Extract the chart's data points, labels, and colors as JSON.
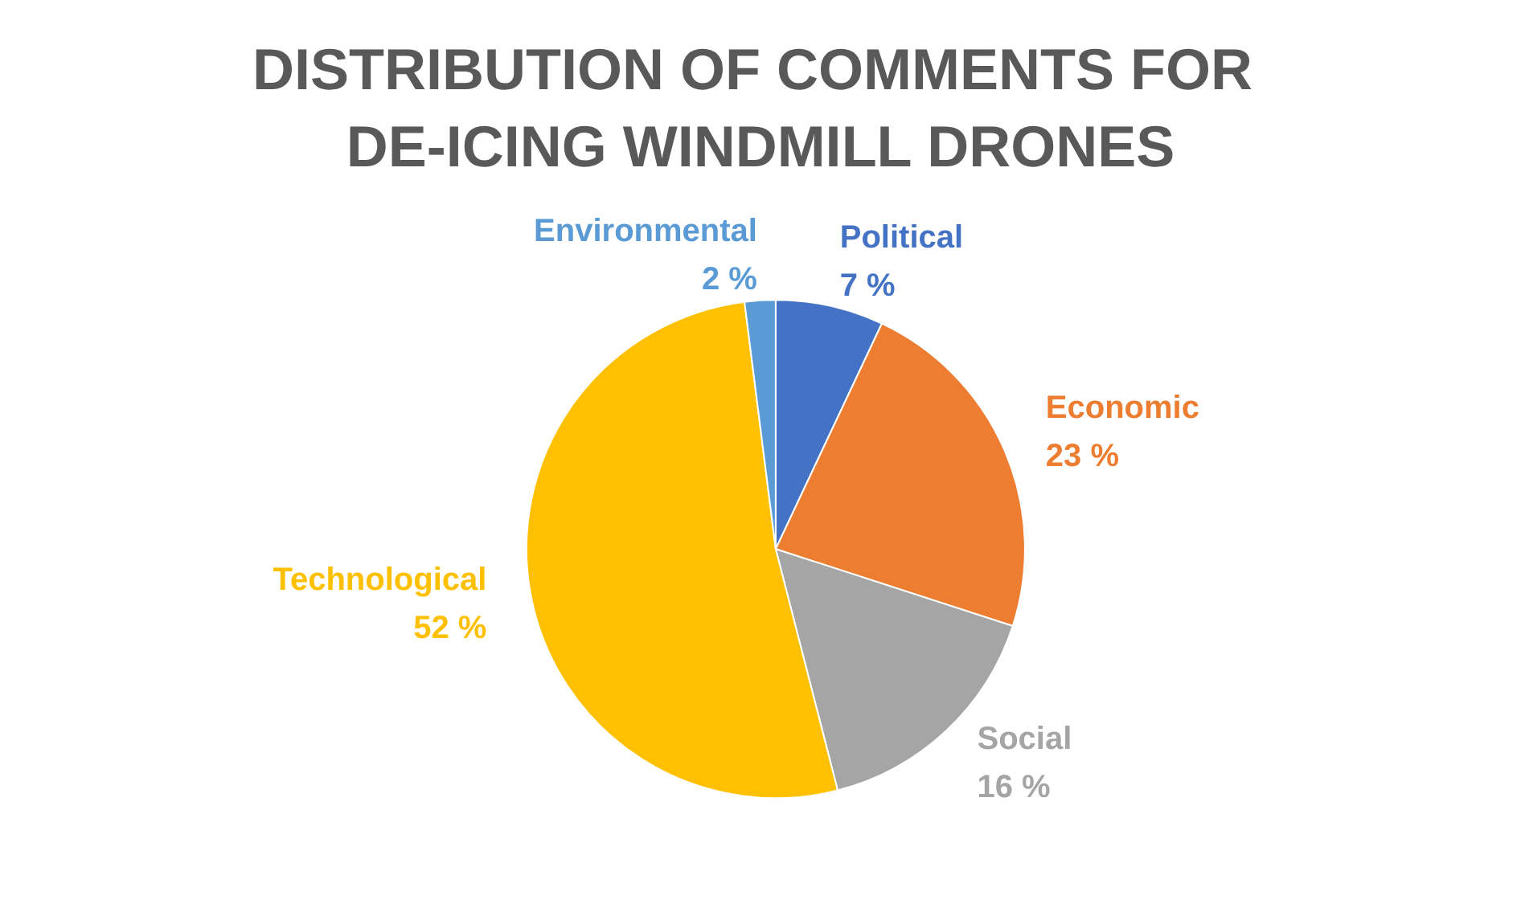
{
  "chart_data": {
    "type": "pie",
    "title": "DISTRIBUTION OF COMMENTS FOR DE-ICING WINDMILL DRONES",
    "categories": [
      "Political",
      "Economic",
      "Social",
      "Technological",
      "Environmental"
    ],
    "values": [
      7,
      23,
      16,
      52,
      2
    ],
    "colors": [
      "#4472c4",
      "#ed7d31",
      "#a5a5a5",
      "#ffc000",
      "#5b9bd5"
    ],
    "value_labels": [
      "7 %",
      "23 %",
      "16 %",
      "52 %",
      "2 %"
    ],
    "legend": false
  }
}
